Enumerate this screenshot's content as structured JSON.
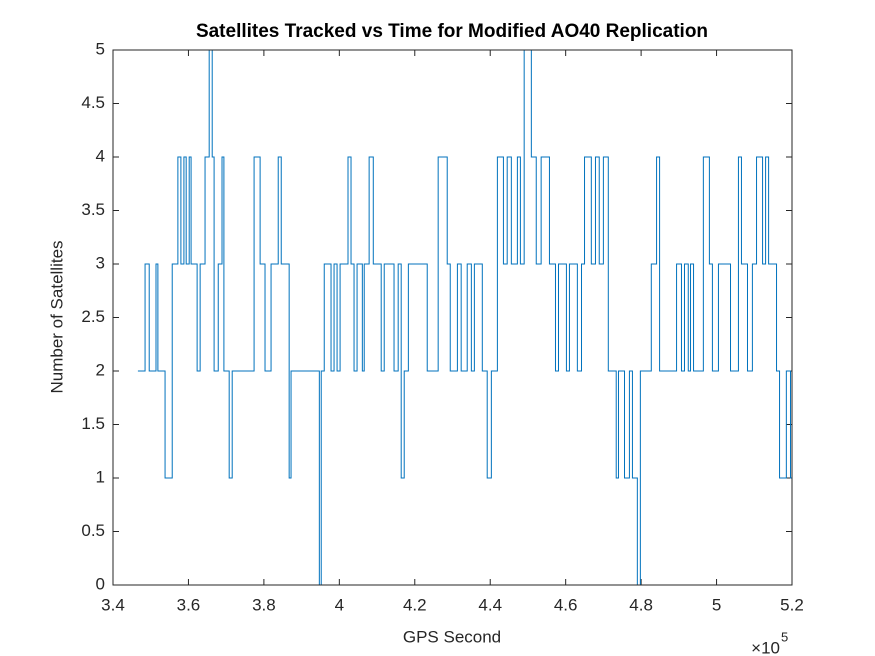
{
  "chart_data": {
    "type": "stairs",
    "title": "Satellites Tracked vs Time for Modified AO40 Replication",
    "x_label": "GPS Second",
    "y_label": "Number of Satellites",
    "x_exponent_base": "×10",
    "x_exponent": "5",
    "xlim": [
      340000,
      520000
    ],
    "xticks": [
      {
        "value": 340000,
        "label": "3.4"
      },
      {
        "value": 360000,
        "label": "3.6"
      },
      {
        "value": 380000,
        "label": "3.8"
      },
      {
        "value": 400000,
        "label": "4"
      },
      {
        "value": 420000,
        "label": "4.2"
      },
      {
        "value": 440000,
        "label": "4.4"
      },
      {
        "value": 460000,
        "label": "4.6"
      },
      {
        "value": 480000,
        "label": "4.8"
      },
      {
        "value": 500000,
        "label": "5"
      },
      {
        "value": 520000,
        "label": "5.2"
      }
    ],
    "ylim": [
      0,
      5
    ],
    "yticks": [
      0,
      0.5,
      1,
      1.5,
      2,
      2.5,
      3,
      3.5,
      4,
      4.5,
      5
    ],
    "grid": false,
    "color": "#0072bd",
    "x": [
      346600,
      348500,
      349600,
      351400,
      351900,
      353800,
      355700,
      357200,
      358000,
      358800,
      359400,
      360200,
      360700,
      362300,
      363100,
      364400,
      365500,
      366300,
      366800,
      367900,
      368900,
      369400,
      370800,
      371600,
      377400,
      379000,
      380300,
      381900,
      383800,
      384600,
      386700,
      387200,
      394700,
      395200,
      396000,
      397800,
      398600,
      399400,
      400200,
      402300,
      403100,
      403900,
      404700,
      406100,
      406600,
      407900,
      409000,
      411100,
      411900,
      414500,
      415600,
      416400,
      417200,
      418300,
      423300,
      426200,
      428600,
      429400,
      431300,
      432300,
      433900,
      435000,
      435800,
      437900,
      439200,
      440300,
      441900,
      443500,
      444500,
      445600,
      447200,
      448000,
      449000,
      450900,
      452200,
      453500,
      455700,
      457300,
      458100,
      460200,
      461000,
      463100,
      464200,
      465000,
      466800,
      467900,
      468900,
      470000,
      471300,
      473400,
      474000,
      475600,
      476900,
      477700,
      479000,
      479800,
      482700,
      484100,
      484900,
      489400,
      490700,
      491500,
      492500,
      493100,
      493900,
      496500,
      498100,
      498900,
      500500,
      503700,
      505800,
      506600,
      508200,
      509500,
      510600,
      512200,
      513000,
      513800,
      515900,
      516700,
      518500,
      519600,
      520000
    ],
    "values": [
      2,
      3,
      2,
      3,
      2,
      1,
      3,
      4,
      3,
      4,
      3,
      4,
      3,
      2,
      3,
      4,
      5,
      4,
      2,
      3,
      4,
      2,
      1,
      2,
      4,
      3,
      2,
      3,
      4,
      3,
      1,
      2,
      0,
      2,
      3,
      2,
      3,
      2,
      3,
      4,
      3,
      2,
      3,
      2,
      3,
      4,
      3,
      2,
      3,
      2,
      3,
      1,
      2,
      3,
      2,
      4,
      3,
      2,
      3,
      2,
      3,
      2,
      3,
      2,
      1,
      2,
      4,
      3,
      4,
      3,
      4,
      3,
      5,
      4,
      3,
      4,
      3,
      2,
      3,
      2,
      3,
      2,
      3,
      4,
      3,
      4,
      3,
      4,
      2,
      1,
      2,
      1,
      2,
      1,
      0,
      2,
      3,
      4,
      2,
      3,
      2,
      3,
      2,
      3,
      2,
      4,
      3,
      2,
      3,
      2,
      4,
      3,
      2,
      3,
      4,
      3,
      4,
      3,
      2,
      1,
      2,
      1,
      1
    ]
  }
}
